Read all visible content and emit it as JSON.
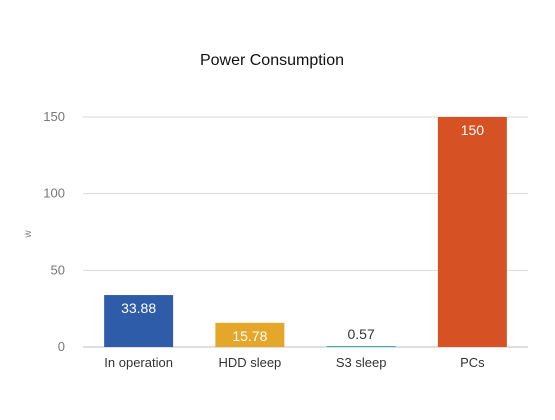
{
  "chart_data": {
    "type": "bar",
    "title": "Power Consumption",
    "xlabel": "",
    "ylabel": "w",
    "categories": [
      "In operation",
      "HDD sleep",
      "S3 sleep",
      "PCs"
    ],
    "values": [
      33.88,
      15.78,
      0.57,
      150
    ],
    "data_labels": [
      "33.88",
      "15.78",
      "0.57",
      "150"
    ],
    "colors": [
      "#2e5ca8",
      "#e4a72a",
      "#1fa8a0",
      "#d65124"
    ],
    "data_label_colors": [
      "#ffffff",
      "#ffffff",
      "#333333",
      "#ffffff"
    ],
    "ylim": [
      0,
      150
    ],
    "yticks": [
      0,
      50,
      100,
      150
    ],
    "ytick_labels": [
      "0",
      "50",
      "100",
      "150"
    ],
    "grid": true,
    "legend": "none"
  }
}
